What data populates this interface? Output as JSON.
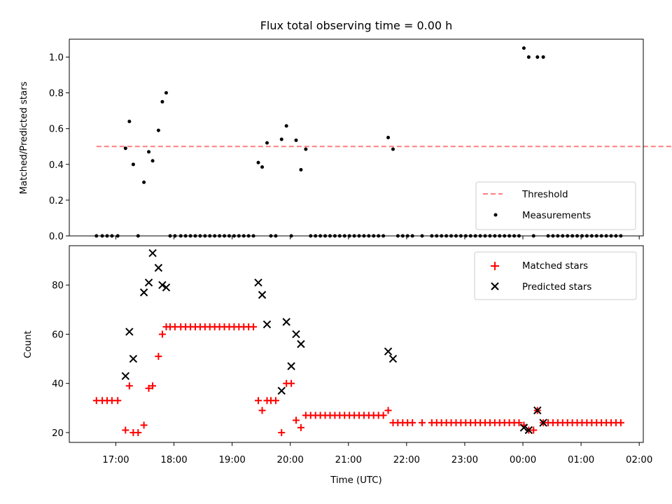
{
  "chart_data": [
    {
      "type": "scatter",
      "title": "Flux total observing time = 0.00 h",
      "xlabel": "",
      "ylabel": "Matched/Predicted stars",
      "ylim": [
        0,
        1.1
      ],
      "yticks": [
        "0.0",
        "0.2",
        "0.4",
        "0.6",
        "0.8",
        "1.0"
      ],
      "xlim_hours": [
        16.2,
        26.07
      ],
      "grid": false,
      "legend_position": "lower-right",
      "series": [
        {
          "name": "Threshold",
          "style": "dashed-line",
          "color": "#ff7f7f",
          "x": [
            "16:40",
            "26:40"
          ],
          "y": [
            0.5,
            0.5
          ]
        },
        {
          "name": "Measurements",
          "style": "dot",
          "color": "#000000",
          "x": [
            "16:40",
            "16:46",
            "16:51",
            "16:56",
            "17:02",
            "17:10",
            "17:14",
            "17:18",
            "17:23",
            "17:29",
            "17:34",
            "17:38",
            "17:44",
            "17:48",
            "17:52",
            "17:56",
            "18:01",
            "18:07",
            "18:12",
            "18:17",
            "18:22",
            "18:27",
            "18:32",
            "18:37",
            "18:42",
            "18:47",
            "18:52",
            "18:57",
            "19:02",
            "19:07",
            "19:12",
            "19:17",
            "19:22",
            "19:27",
            "19:31",
            "19:36",
            "19:40",
            "19:45",
            "19:51",
            "19:56",
            "20:01",
            "20:06",
            "20:11",
            "20:16",
            "20:21",
            "20:26",
            "20:31",
            "20:36",
            "20:41",
            "20:46",
            "20:51",
            "20:56",
            "21:01",
            "21:06",
            "21:11",
            "21:16",
            "21:21",
            "21:26",
            "21:31",
            "21:36",
            "21:41",
            "21:46",
            "21:51",
            "21:56",
            "22:01",
            "22:06",
            "22:16",
            "22:26",
            "22:31",
            "22:36",
            "22:41",
            "22:46",
            "22:51",
            "22:56",
            "23:01",
            "23:06",
            "23:11",
            "23:16",
            "23:21",
            "23:26",
            "23:31",
            "23:36",
            "23:41",
            "23:46",
            "23:51",
            "23:56",
            "24:01",
            "24:06",
            "24:11",
            "24:15",
            "24:21",
            "24:26",
            "24:31",
            "24:36",
            "24:41",
            "24:46",
            "24:51",
            "24:56",
            "25:01",
            "25:06",
            "25:11",
            "25:16",
            "25:21",
            "25:26",
            "25:31",
            "25:36",
            "25:41"
          ],
          "y": [
            0,
            0,
            0,
            0,
            0,
            0.49,
            0.64,
            0.4,
            0,
            0.3,
            0.47,
            0.42,
            0.59,
            0.75,
            0.8,
            0,
            0,
            0,
            0,
            0,
            0,
            0,
            0,
            0,
            0,
            0,
            0,
            0,
            0,
            0,
            0,
            0,
            0,
            0.41,
            0.385,
            0.52,
            0,
            0,
            0.54,
            0.615,
            0,
            0.535,
            0.37,
            0.485,
            0,
            0,
            0,
            0,
            0,
            0,
            0,
            0,
            0,
            0,
            0,
            0,
            0,
            0,
            0,
            0,
            0.55,
            0.485,
            0,
            0,
            0,
            0,
            0,
            0,
            0,
            0,
            0,
            0,
            0,
            0,
            0,
            0,
            0,
            0,
            0,
            0,
            0,
            0,
            0,
            0,
            0,
            0,
            1.05,
            1.0,
            0,
            1.0,
            1.0,
            0,
            0,
            0,
            0,
            0,
            0,
            0,
            0,
            0,
            0,
            0,
            0,
            0,
            0,
            0,
            0
          ]
        }
      ]
    },
    {
      "type": "scatter",
      "title": "",
      "xlabel": "Time (UTC)",
      "ylabel": "Count",
      "ylim": [
        16,
        96
      ],
      "yticks": [
        "20",
        "40",
        "60",
        "80"
      ],
      "xticks": [
        "17:00",
        "18:00",
        "19:00",
        "20:00",
        "21:00",
        "22:00",
        "23:00",
        "00:00",
        "01:00",
        "02:00"
      ],
      "xlim_hours": [
        16.2,
        26.07
      ],
      "grid": false,
      "legend_position": "upper-right",
      "series": [
        {
          "name": "Matched stars",
          "style": "plus",
          "color": "#ff0000",
          "x": [
            "16:40",
            "16:46",
            "16:51",
            "16:56",
            "17:02",
            "17:10",
            "17:14",
            "17:18",
            "17:23",
            "17:29",
            "17:34",
            "17:38",
            "17:44",
            "17:48",
            "17:52",
            "17:56",
            "18:01",
            "18:07",
            "18:12",
            "18:17",
            "18:22",
            "18:27",
            "18:32",
            "18:37",
            "18:42",
            "18:47",
            "18:52",
            "18:57",
            "19:02",
            "19:07",
            "19:12",
            "19:17",
            "19:22",
            "19:27",
            "19:31",
            "19:36",
            "19:40",
            "19:45",
            "19:51",
            "19:56",
            "20:01",
            "20:06",
            "20:11",
            "20:16",
            "20:21",
            "20:26",
            "20:31",
            "20:36",
            "20:41",
            "20:46",
            "20:51",
            "20:56",
            "21:01",
            "21:06",
            "21:11",
            "21:16",
            "21:21",
            "21:26",
            "21:31",
            "21:36",
            "21:41",
            "21:46",
            "21:51",
            "21:56",
            "22:01",
            "22:06",
            "22:16",
            "22:26",
            "22:31",
            "22:36",
            "22:41",
            "22:46",
            "22:51",
            "22:56",
            "23:01",
            "23:06",
            "23:11",
            "23:16",
            "23:21",
            "23:26",
            "23:31",
            "23:36",
            "23:41",
            "23:46",
            "23:51",
            "23:56",
            "24:01",
            "24:06",
            "24:11",
            "24:15",
            "24:21",
            "24:26",
            "24:31",
            "24:36",
            "24:41",
            "24:46",
            "24:51",
            "24:56",
            "25:01",
            "25:06",
            "25:11",
            "25:16",
            "25:21",
            "25:26",
            "25:31",
            "25:36",
            "25:41"
          ],
          "y": [
            33,
            33,
            33,
            33,
            33,
            21,
            39,
            20,
            20,
            23,
            38,
            39,
            51,
            60,
            63,
            63,
            63,
            63,
            63,
            63,
            63,
            63,
            63,
            63,
            63,
            63,
            63,
            63,
            63,
            63,
            63,
            63,
            63,
            33,
            29,
            33,
            33,
            33,
            20,
            40,
            40,
            25,
            22,
            27,
            27,
            27,
            27,
            27,
            27,
            27,
            27,
            27,
            27,
            27,
            27,
            27,
            27,
            27,
            27,
            27,
            29,
            24,
            24,
            24,
            24,
            24,
            24,
            24,
            24,
            24,
            24,
            24,
            24,
            24,
            24,
            24,
            24,
            24,
            24,
            24,
            24,
            24,
            24,
            24,
            24,
            24,
            23,
            21,
            21,
            29,
            24,
            24,
            24,
            24,
            24,
            24,
            24,
            24,
            24,
            24,
            24,
            24,
            24,
            24,
            24,
            24,
            24
          ]
        },
        {
          "name": "Predicted stars",
          "style": "x",
          "color": "#000000",
          "x": [
            "17:10",
            "17:14",
            "17:18",
            "17:29",
            "17:34",
            "17:38",
            "17:44",
            "17:48",
            "17:52",
            "19:27",
            "19:31",
            "19:36",
            "19:51",
            "19:56",
            "20:01",
            "20:06",
            "20:11",
            "21:41",
            "21:46",
            "24:01",
            "24:06",
            "24:15",
            "24:21"
          ],
          "y": [
            43,
            61,
            50,
            77,
            81,
            93,
            87,
            80,
            79,
            81,
            76,
            64,
            37,
            65,
            47,
            60,
            56,
            53,
            50,
            22,
            21,
            29,
            24
          ]
        }
      ]
    }
  ]
}
